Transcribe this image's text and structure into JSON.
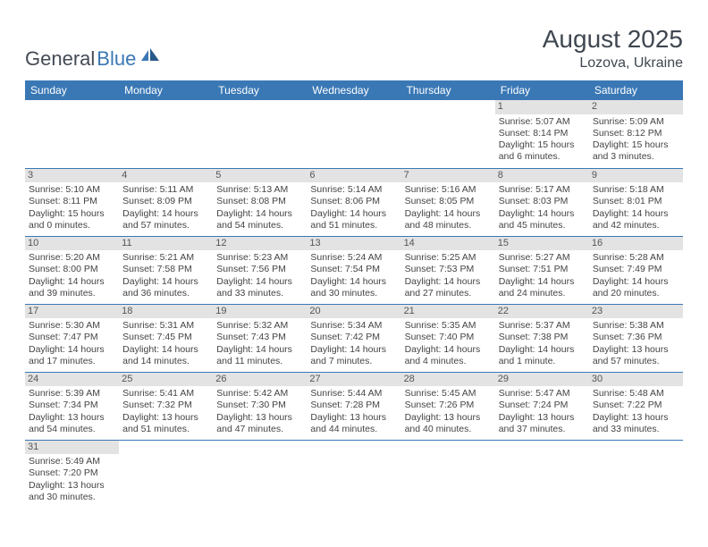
{
  "logo": {
    "part1": "General",
    "part2": "Blue"
  },
  "title": {
    "month": "August 2025",
    "location": "Lozova, Ukraine"
  },
  "colors": {
    "header_bg": "#3a78b5",
    "header_fg": "#ffffff",
    "daynum_bg": "#e3e3e3",
    "border": "#3a78b5"
  },
  "weekdays": [
    "Sunday",
    "Monday",
    "Tuesday",
    "Wednesday",
    "Thursday",
    "Friday",
    "Saturday"
  ],
  "weeks": [
    [
      null,
      null,
      null,
      null,
      null,
      {
        "n": "1",
        "sr": "Sunrise: 5:07 AM",
        "ss": "Sunset: 8:14 PM",
        "d1": "Daylight: 15 hours",
        "d2": "and 6 minutes."
      },
      {
        "n": "2",
        "sr": "Sunrise: 5:09 AM",
        "ss": "Sunset: 8:12 PM",
        "d1": "Daylight: 15 hours",
        "d2": "and 3 minutes."
      }
    ],
    [
      {
        "n": "3",
        "sr": "Sunrise: 5:10 AM",
        "ss": "Sunset: 8:11 PM",
        "d1": "Daylight: 15 hours",
        "d2": "and 0 minutes."
      },
      {
        "n": "4",
        "sr": "Sunrise: 5:11 AM",
        "ss": "Sunset: 8:09 PM",
        "d1": "Daylight: 14 hours",
        "d2": "and 57 minutes."
      },
      {
        "n": "5",
        "sr": "Sunrise: 5:13 AM",
        "ss": "Sunset: 8:08 PM",
        "d1": "Daylight: 14 hours",
        "d2": "and 54 minutes."
      },
      {
        "n": "6",
        "sr": "Sunrise: 5:14 AM",
        "ss": "Sunset: 8:06 PM",
        "d1": "Daylight: 14 hours",
        "d2": "and 51 minutes."
      },
      {
        "n": "7",
        "sr": "Sunrise: 5:16 AM",
        "ss": "Sunset: 8:05 PM",
        "d1": "Daylight: 14 hours",
        "d2": "and 48 minutes."
      },
      {
        "n": "8",
        "sr": "Sunrise: 5:17 AM",
        "ss": "Sunset: 8:03 PM",
        "d1": "Daylight: 14 hours",
        "d2": "and 45 minutes."
      },
      {
        "n": "9",
        "sr": "Sunrise: 5:18 AM",
        "ss": "Sunset: 8:01 PM",
        "d1": "Daylight: 14 hours",
        "d2": "and 42 minutes."
      }
    ],
    [
      {
        "n": "10",
        "sr": "Sunrise: 5:20 AM",
        "ss": "Sunset: 8:00 PM",
        "d1": "Daylight: 14 hours",
        "d2": "and 39 minutes."
      },
      {
        "n": "11",
        "sr": "Sunrise: 5:21 AM",
        "ss": "Sunset: 7:58 PM",
        "d1": "Daylight: 14 hours",
        "d2": "and 36 minutes."
      },
      {
        "n": "12",
        "sr": "Sunrise: 5:23 AM",
        "ss": "Sunset: 7:56 PM",
        "d1": "Daylight: 14 hours",
        "d2": "and 33 minutes."
      },
      {
        "n": "13",
        "sr": "Sunrise: 5:24 AM",
        "ss": "Sunset: 7:54 PM",
        "d1": "Daylight: 14 hours",
        "d2": "and 30 minutes."
      },
      {
        "n": "14",
        "sr": "Sunrise: 5:25 AM",
        "ss": "Sunset: 7:53 PM",
        "d1": "Daylight: 14 hours",
        "d2": "and 27 minutes."
      },
      {
        "n": "15",
        "sr": "Sunrise: 5:27 AM",
        "ss": "Sunset: 7:51 PM",
        "d1": "Daylight: 14 hours",
        "d2": "and 24 minutes."
      },
      {
        "n": "16",
        "sr": "Sunrise: 5:28 AM",
        "ss": "Sunset: 7:49 PM",
        "d1": "Daylight: 14 hours",
        "d2": "and 20 minutes."
      }
    ],
    [
      {
        "n": "17",
        "sr": "Sunrise: 5:30 AM",
        "ss": "Sunset: 7:47 PM",
        "d1": "Daylight: 14 hours",
        "d2": "and 17 minutes."
      },
      {
        "n": "18",
        "sr": "Sunrise: 5:31 AM",
        "ss": "Sunset: 7:45 PM",
        "d1": "Daylight: 14 hours",
        "d2": "and 14 minutes."
      },
      {
        "n": "19",
        "sr": "Sunrise: 5:32 AM",
        "ss": "Sunset: 7:43 PM",
        "d1": "Daylight: 14 hours",
        "d2": "and 11 minutes."
      },
      {
        "n": "20",
        "sr": "Sunrise: 5:34 AM",
        "ss": "Sunset: 7:42 PM",
        "d1": "Daylight: 14 hours",
        "d2": "and 7 minutes."
      },
      {
        "n": "21",
        "sr": "Sunrise: 5:35 AM",
        "ss": "Sunset: 7:40 PM",
        "d1": "Daylight: 14 hours",
        "d2": "and 4 minutes."
      },
      {
        "n": "22",
        "sr": "Sunrise: 5:37 AM",
        "ss": "Sunset: 7:38 PM",
        "d1": "Daylight: 14 hours",
        "d2": "and 1 minute."
      },
      {
        "n": "23",
        "sr": "Sunrise: 5:38 AM",
        "ss": "Sunset: 7:36 PM",
        "d1": "Daylight: 13 hours",
        "d2": "and 57 minutes."
      }
    ],
    [
      {
        "n": "24",
        "sr": "Sunrise: 5:39 AM",
        "ss": "Sunset: 7:34 PM",
        "d1": "Daylight: 13 hours",
        "d2": "and 54 minutes."
      },
      {
        "n": "25",
        "sr": "Sunrise: 5:41 AM",
        "ss": "Sunset: 7:32 PM",
        "d1": "Daylight: 13 hours",
        "d2": "and 51 minutes."
      },
      {
        "n": "26",
        "sr": "Sunrise: 5:42 AM",
        "ss": "Sunset: 7:30 PM",
        "d1": "Daylight: 13 hours",
        "d2": "and 47 minutes."
      },
      {
        "n": "27",
        "sr": "Sunrise: 5:44 AM",
        "ss": "Sunset: 7:28 PM",
        "d1": "Daylight: 13 hours",
        "d2": "and 44 minutes."
      },
      {
        "n": "28",
        "sr": "Sunrise: 5:45 AM",
        "ss": "Sunset: 7:26 PM",
        "d1": "Daylight: 13 hours",
        "d2": "and 40 minutes."
      },
      {
        "n": "29",
        "sr": "Sunrise: 5:47 AM",
        "ss": "Sunset: 7:24 PM",
        "d1": "Daylight: 13 hours",
        "d2": "and 37 minutes."
      },
      {
        "n": "30",
        "sr": "Sunrise: 5:48 AM",
        "ss": "Sunset: 7:22 PM",
        "d1": "Daylight: 13 hours",
        "d2": "and 33 minutes."
      }
    ],
    [
      {
        "n": "31",
        "sr": "Sunrise: 5:49 AM",
        "ss": "Sunset: 7:20 PM",
        "d1": "Daylight: 13 hours",
        "d2": "and 30 minutes."
      },
      null,
      null,
      null,
      null,
      null,
      null
    ]
  ]
}
